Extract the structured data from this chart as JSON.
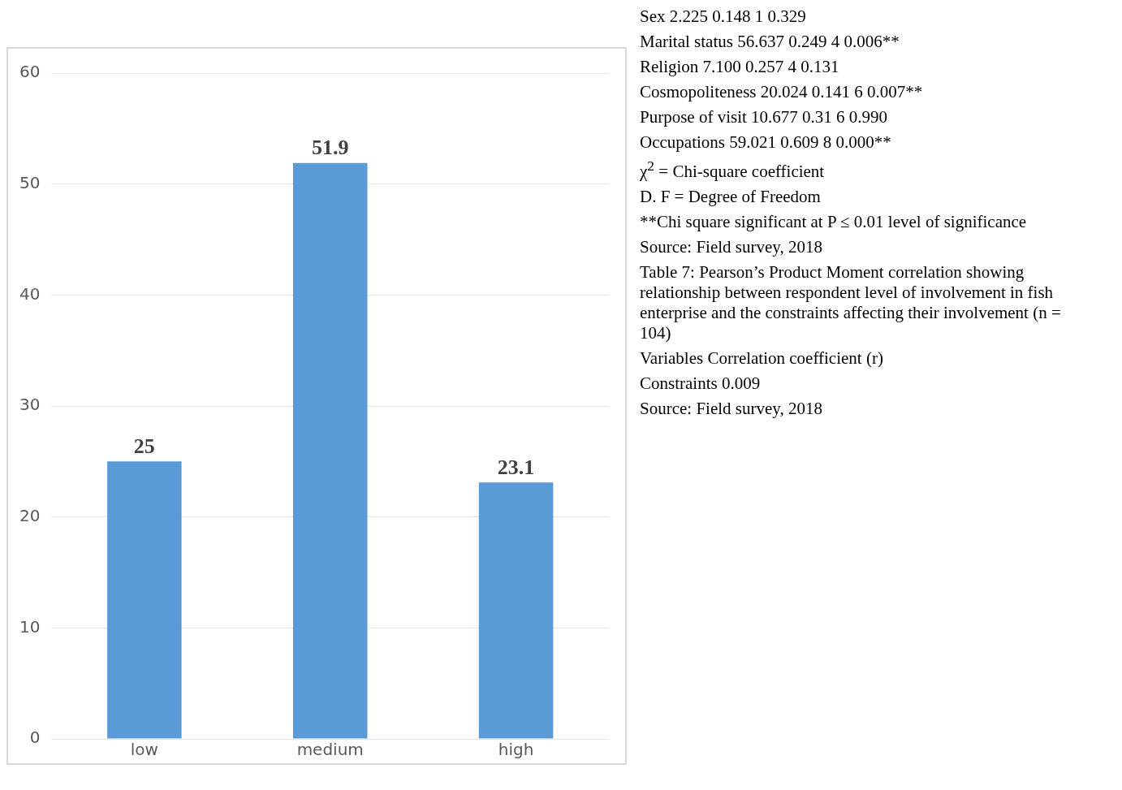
{
  "chart_data": {
    "type": "bar",
    "categories": [
      "low",
      "medium",
      "high"
    ],
    "values": [
      25,
      51.9,
      23.1
    ],
    "color": "#5b9bd5",
    "ylim": [
      0,
      60
    ],
    "yticks": [
      0,
      10,
      20,
      30,
      40,
      50,
      60
    ],
    "grid": "y",
    "legend": false,
    "data_labels": true,
    "annotations": [
      "Sex 2.225 0.148 1 0.329",
      "Marital status 56.637 0.249 4 0.006**",
      "Religion 7.100 0.257 4 0.131",
      "Cosmopoliteness 20.024 0.141 6 0.007**",
      "Purpose of visit 10.677 0.31 6 0.990",
      "Occupations 59.021 0.609 8 0.000**",
      "χ$^{2}$ = Chi-square coefficient",
      "D. F = Degree of Freedom",
      "**Chi square significant at P ≤ 0.01 level of significance",
      "Source: Field survey, 2018",
      "Table 7: Pearson’s Product Moment correlation showing relationship between respondent level of involvement in fish enterprise and the constraints affecting their involvement (n = 104)",
      "Variables Correlation coefficient (r)",
      "Constraints 0.009",
      "Source: Field survey, 2018"
    ]
  }
}
